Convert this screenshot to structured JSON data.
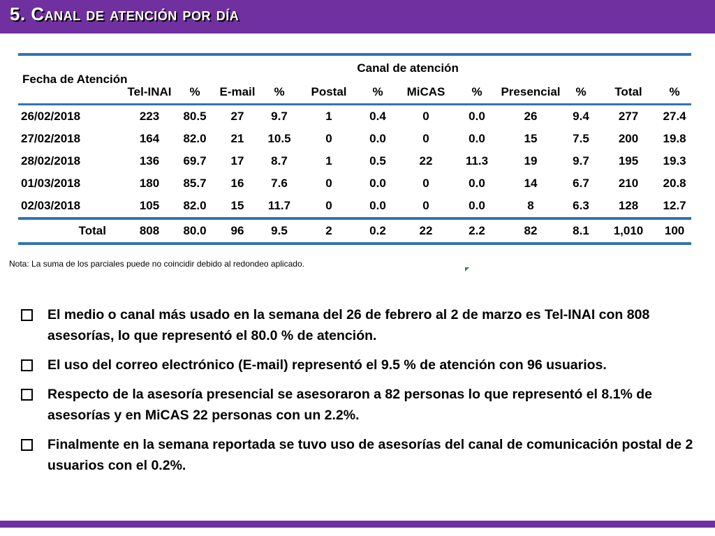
{
  "slide": {
    "title": "5. Canal de atención por día"
  },
  "table": {
    "date_header": "Fecha de Atención",
    "group_header": "Canal de atención",
    "columns": [
      "Tel-INAI",
      "%",
      "E-mail",
      "%",
      "Postal",
      "%",
      "MiCAS",
      "%",
      "Presencial",
      "%",
      "Total",
      "%"
    ],
    "rows": [
      {
        "date": "26/02/2018",
        "values": [
          "223",
          "80.5",
          "27",
          "9.7",
          "1",
          "0.4",
          "0",
          "0.0",
          "26",
          "9.4",
          "277",
          "27.4"
        ]
      },
      {
        "date": "27/02/2018",
        "values": [
          "164",
          "82.0",
          "21",
          "10.5",
          "0",
          "0.0",
          "0",
          "0.0",
          "15",
          "7.5",
          "200",
          "19.8"
        ]
      },
      {
        "date": "28/02/2018",
        "values": [
          "136",
          "69.7",
          "17",
          "8.7",
          "1",
          "0.5",
          "22",
          "11.3",
          "19",
          "9.7",
          "195",
          "19.3"
        ]
      },
      {
        "date": "01/03/2018",
        "values": [
          "180",
          "85.7",
          "16",
          "7.6",
          "0",
          "0.0",
          "0",
          "0.0",
          "14",
          "6.7",
          "210",
          "20.8"
        ]
      },
      {
        "date": "02/03/2018",
        "values": [
          "105",
          "82.0",
          "15",
          "11.7",
          "0",
          "0.0",
          "0",
          "0.0",
          "8",
          "6.3",
          "128",
          "12.7"
        ]
      }
    ],
    "total": {
      "label": "Total",
      "values": [
        "808",
        "80.0",
        "96",
        "9.5",
        "2",
        "0.2",
        "22",
        "2.2",
        "82",
        "8.1",
        "1,010",
        "100"
      ]
    },
    "colors": {
      "rule": "#2e75b6"
    }
  },
  "note": "Nota: La suma de los parciales puede no coincidir debido al redondeo aplicado.",
  "bullets": [
    "El medio o canal más usado en la semana del 26 de febrero al 2 de marzo es Tel-INAI con 808 asesorías, lo que representó el 80.0 % de atención.",
    "El uso del correo electrónico (E-mail) representó el 9.5 % de atención con 96 usuarios.",
    "Respecto de la asesoría presencial se asesoraron a 82 personas lo que representó el 8.1% de asesorías y en MiCAS 22 personas con un 2.2%.",
    "Finalmente en la semana reportada  se tuvo uso de asesorías del canal de comunicación postal de 2 usuarios con el 0.2%."
  ],
  "theme": {
    "accent": "#7030a0",
    "icon": "checkbox-square-icon"
  }
}
